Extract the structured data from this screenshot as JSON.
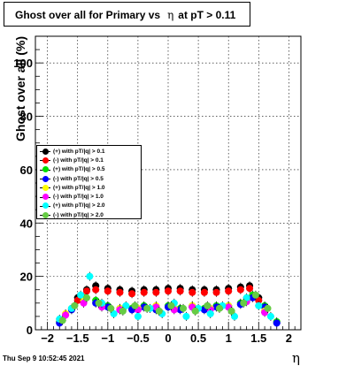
{
  "title_prefix": "Ghost over all for Primary vs",
  "title_eta": "η",
  "title_suffix": "at pT > 0.11",
  "timestamp": "Thu Sep  9 10:52:45 2021",
  "chart_data": {
    "type": "scatter",
    "ylabel": "Ghost over all (%)",
    "xlabel": "η",
    "xlim": [
      -2.2,
      2.2
    ],
    "ylim": [
      0,
      110
    ],
    "xticks": [
      -2,
      -1.5,
      -1,
      -0.5,
      0,
      0.5,
      1,
      1.5,
      2
    ],
    "xtick_labels": [
      "−2",
      "−1.5",
      "−1",
      "−0.5",
      "0",
      "0.5",
      "1",
      "1.5",
      "2"
    ],
    "yticks": [
      0,
      20,
      40,
      60,
      80,
      100
    ],
    "ytick_labels": [
      "0",
      "20",
      "40",
      "60",
      "80",
      "100"
    ],
    "grid": true,
    "legend_position": "middle-left",
    "series": [
      {
        "name": "(+) with pT/|q| > 0.1",
        "color": "#000000",
        "x": [
          -1.5,
          -1.35,
          -1.2,
          -1.0,
          -0.8,
          -0.6,
          -0.4,
          -0.2,
          0.0,
          0.2,
          0.4,
          0.6,
          0.8,
          1.0,
          1.2,
          1.35,
          1.5
        ],
        "y": [
          12,
          15,
          16.5,
          15.5,
          15,
          14.5,
          15,
          15,
          15.5,
          15.5,
          15,
          15,
          15,
          15.5,
          16,
          16.5,
          12
        ]
      },
      {
        "name": "(-) with pT/|q| > 0.1",
        "color": "#ff0000",
        "x": [
          -1.5,
          -1.35,
          -1.2,
          -1.0,
          -0.8,
          -0.6,
          -0.4,
          -0.2,
          0.0,
          0.2,
          0.4,
          0.6,
          0.8,
          1.0,
          1.2,
          1.35,
          1.5
        ],
        "y": [
          11,
          14.5,
          15,
          14.5,
          14,
          13.5,
          14,
          14,
          14.5,
          14.5,
          14,
          14,
          14,
          14.5,
          15,
          15.5,
          11
        ]
      },
      {
        "name": "(+) with pT/|q| > 0.5",
        "color": "#00dd00",
        "x": [
          -1.8,
          -1.6,
          -1.4,
          -1.2,
          -1.0,
          -0.8,
          -0.6,
          -0.4,
          -0.2,
          0.0,
          0.2,
          0.4,
          0.6,
          0.8,
          1.0,
          1.2,
          1.4,
          1.6,
          1.8
        ],
        "y": [
          3,
          8,
          12,
          11,
          9,
          8,
          8,
          9,
          8,
          9,
          8,
          9,
          8,
          9,
          9,
          10,
          13,
          9,
          3
        ]
      },
      {
        "name": "(-) with pT/|q| > 0.5",
        "color": "#0000ff",
        "x": [
          -1.8,
          -1.6,
          -1.4,
          -1.2,
          -1.0,
          -0.8,
          -0.6,
          -0.4,
          -0.2,
          0.0,
          0.2,
          0.4,
          0.6,
          0.8,
          1.0,
          1.2,
          1.4,
          1.6,
          1.8
        ],
        "y": [
          2.5,
          7.5,
          11,
          10,
          8.5,
          7.5,
          7.5,
          8.5,
          7.5,
          8.5,
          7.5,
          8.5,
          7.5,
          8.5,
          8.5,
          9.5,
          12,
          8.5,
          2.5
        ]
      },
      {
        "name": "(+) with pT/|q| > 1.0",
        "color": "#ffff00",
        "x": [
          -1.7,
          -1.4,
          -1.1,
          -0.8,
          -0.5,
          -0.2,
          0.1,
          0.4,
          0.7,
          1.0,
          1.3,
          1.6
        ],
        "y": [
          6,
          11,
          9,
          8,
          8,
          9,
          8,
          9,
          8,
          9,
          11,
          7
        ]
      },
      {
        "name": "(-) with pT/|q| > 1.0",
        "color": "#ff00ff",
        "x": [
          -1.7,
          -1.4,
          -1.1,
          -0.8,
          -0.5,
          -0.2,
          0.1,
          0.4,
          0.7,
          1.0,
          1.3,
          1.6
        ],
        "y": [
          5.5,
          10,
          8.5,
          7.5,
          7.5,
          8.5,
          7.5,
          8.5,
          7.5,
          8.5,
          10.5,
          6.5
        ]
      },
      {
        "name": "(+) with pT/|q| > 2.0",
        "color": "#00ffff",
        "x": [
          -1.8,
          -1.6,
          -1.45,
          -1.3,
          -1.1,
          -0.9,
          -0.7,
          -0.5,
          -0.3,
          -0.1,
          0.1,
          0.3,
          0.5,
          0.7,
          0.9,
          1.1,
          1.3,
          1.5,
          1.7
        ],
        "y": [
          4,
          8,
          13,
          20,
          10,
          6,
          9,
          5,
          8,
          6,
          10,
          5,
          8,
          6,
          9,
          5,
          12,
          9,
          5
        ]
      },
      {
        "name": "(-) with pT/|q| > 2.0",
        "color": "#66cc44",
        "x": [
          -1.75,
          -1.55,
          -1.35,
          -1.15,
          -0.95,
          -0.75,
          -0.55,
          -0.35,
          -0.15,
          0.05,
          0.25,
          0.45,
          0.65,
          0.85,
          1.05,
          1.25,
          1.45,
          1.65
        ],
        "y": [
          3.5,
          9,
          12,
          10,
          8,
          7,
          9,
          8,
          7,
          9,
          8,
          7,
          9,
          8,
          7,
          10,
          13,
          8
        ]
      }
    ]
  }
}
